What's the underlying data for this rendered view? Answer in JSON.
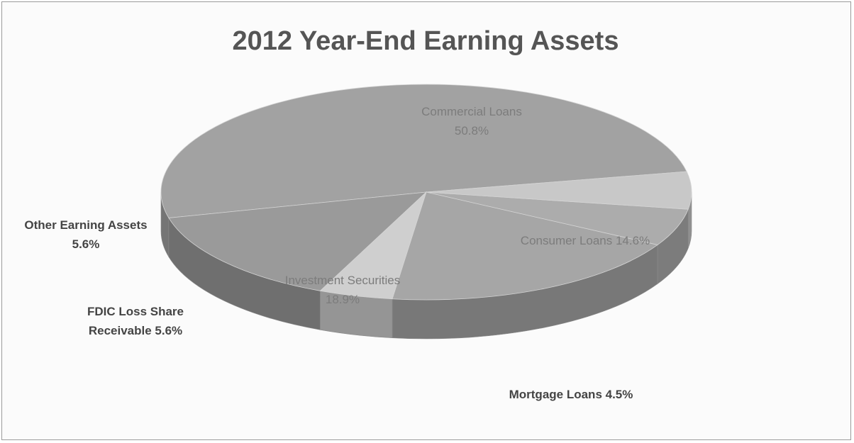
{
  "chart_data": {
    "type": "pie",
    "title": "2012 Year-End Earning Assets",
    "slices": [
      {
        "name": "Commercial Loans",
        "value": 50.8,
        "label_lines": [
          "Commercial Loans",
          "50.8%"
        ],
        "color": "#a2a2a2"
      },
      {
        "name": "Consumer Loans",
        "value": 14.6,
        "label_lines": [
          "Consumer Loans 14.6%"
        ],
        "color": "#9a9a9a"
      },
      {
        "name": "Mortgage Loans",
        "value": 4.5,
        "label_lines": [
          "Mortgage Loans 4.5%"
        ],
        "color": "#cfcfcf"
      },
      {
        "name": "Investment Securities",
        "value": 18.9,
        "label_lines": [
          "Investment Securities",
          "18.9%"
        ],
        "color": "#a6a6a6"
      },
      {
        "name": "FDIC Loss Share Receivable",
        "value": 5.6,
        "label_lines": [
          "FDIC Loss Share",
          "Receivable 5.6%"
        ],
        "color": "#acacac"
      },
      {
        "name": "Other Earning Assets",
        "value": 5.6,
        "label_lines": [
          "Other Earning Assets",
          "5.6%"
        ],
        "color": "#c8c8c8"
      }
    ],
    "legend": "none",
    "style": "3d"
  }
}
